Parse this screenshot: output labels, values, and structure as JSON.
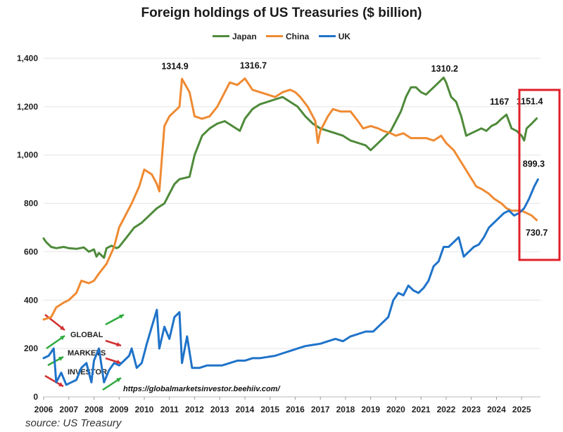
{
  "header": {
    "title": "Foreign holdings of US Treasuries ($ billion)"
  },
  "footer": {
    "source": "source: US Treasury",
    "url": "https://globalmarketsinvestor.beehiiv.com/",
    "watermark_words": [
      "GLOBAL",
      "MARKETS",
      "INVESTOR"
    ]
  },
  "colors": {
    "Japan": "#4e8a3a",
    "China": "#ef8a32",
    "UK": "#1f73c9",
    "highlight": "#e0202a"
  },
  "chart_data": {
    "type": "line",
    "title": "Foreign holdings of US Treasuries ($ billion)",
    "xlabel": "",
    "ylabel": "",
    "xlim": [
      2006,
      2025.75
    ],
    "ylim": [
      0,
      1400
    ],
    "yticks": [
      0,
      200,
      400,
      600,
      800,
      1000,
      1200,
      1400
    ],
    "ytick_labels": [
      "0",
      "200",
      "400",
      "600",
      "800",
      "1,000",
      "1,200",
      "1,400"
    ],
    "xticks": [
      2006,
      2007,
      2008,
      2009,
      2010,
      2011,
      2012,
      2013,
      2014,
      2015,
      2016,
      2017,
      2018,
      2019,
      2020,
      2021,
      2022,
      2023,
      2024,
      2025
    ],
    "xtick_labels": [
      "2006",
      "2007",
      "2008",
      "2009",
      "2010",
      "2011",
      "2012",
      "2013",
      "2014",
      "2015",
      "2016",
      "2017",
      "2018",
      "2019",
      "2020",
      "2021",
      "2022",
      "2023",
      "2024",
      "2025"
    ],
    "grid": "horizontal",
    "legend": "top",
    "series": [
      {
        "name": "Japan",
        "x": [
          2006,
          2006.1,
          2006.3,
          2006.5,
          2006.8,
          2007,
          2007.3,
          2007.6,
          2007.8,
          2008,
          2008.1,
          2008.2,
          2008.4,
          2008.5,
          2008.7,
          2008.9,
          2009,
          2009.3,
          2009.6,
          2009.9,
          2010.2,
          2010.5,
          2010.8,
          2011,
          2011.2,
          2011.4,
          2011.6,
          2011.8,
          2012,
          2012.3,
          2012.6,
          2012.9,
          2013.2,
          2013.5,
          2013.8,
          2014,
          2014.3,
          2014.6,
          2014.9,
          2015.2,
          2015.5,
          2015.8,
          2016.1,
          2016.4,
          2016.7,
          2017,
          2017.3,
          2017.6,
          2017.9,
          2018.2,
          2018.5,
          2018.8,
          2019,
          2019.2,
          2019.5,
          2019.8,
          2020,
          2020.2,
          2020.4,
          2020.6,
          2020.8,
          2021,
          2021.2,
          2021.4,
          2021.6,
          2021.8,
          2021.9,
          2022,
          2022.2,
          2022.4,
          2022.6,
          2022.8,
          2023,
          2023.2,
          2023.4,
          2023.6,
          2023.8,
          2024,
          2024.2,
          2024.4,
          2024.6,
          2024.8,
          2025,
          2025.1,
          2025.2,
          2025.4,
          2025.6
        ],
        "values": [
          655,
          640,
          620,
          615,
          620,
          615,
          612,
          618,
          600,
          610,
          580,
          595,
          575,
          615,
          625,
          615,
          620,
          660,
          700,
          720,
          750,
          780,
          800,
          840,
          880,
          900,
          905,
          910,
          1000,
          1080,
          1110,
          1130,
          1140,
          1120,
          1100,
          1150,
          1190,
          1210,
          1220,
          1230,
          1240,
          1220,
          1200,
          1160,
          1130,
          1110,
          1100,
          1090,
          1080,
          1060,
          1050,
          1040,
          1020,
          1040,
          1070,
          1100,
          1140,
          1180,
          1240,
          1280,
          1280,
          1260,
          1250,
          1270,
          1290,
          1310.2,
          1320,
          1300,
          1240,
          1220,
          1160,
          1080,
          1090,
          1100,
          1110,
          1100,
          1120,
          1130,
          1150,
          1167,
          1110,
          1100,
          1080,
          1060,
          1110,
          1130,
          1151.4
        ]
      },
      {
        "name": "China",
        "x": [
          2006,
          2006.3,
          2006.5,
          2006.8,
          2007,
          2007.3,
          2007.5,
          2007.8,
          2008,
          2008.2,
          2008.5,
          2008.8,
          2009,
          2009.3,
          2009.5,
          2009.8,
          2010,
          2010.3,
          2010.5,
          2010.6,
          2010.8,
          2011,
          2011.2,
          2011.4,
          2011.5,
          2011.8,
          2012,
          2012.3,
          2012.6,
          2012.9,
          2013.2,
          2013.4,
          2013.7,
          2014,
          2014.3,
          2014.6,
          2014.9,
          2015.2,
          2015.5,
          2015.8,
          2016,
          2016.2,
          2016.5,
          2016.8,
          2016.9,
          2017,
          2017.3,
          2017.5,
          2017.8,
          2018,
          2018.2,
          2018.5,
          2018.7,
          2019,
          2019.3,
          2019.5,
          2019.8,
          2020,
          2020.3,
          2020.6,
          2020.9,
          2021.2,
          2021.5,
          2021.8,
          2022,
          2022.3,
          2022.6,
          2022.9,
          2023.2,
          2023.4,
          2023.7,
          2023.9,
          2024.2,
          2024.4,
          2024.6,
          2024.8,
          2025,
          2025.2,
          2025.4,
          2025.6
        ],
        "values": [
          320,
          330,
          370,
          390,
          400,
          430,
          480,
          470,
          480,
          510,
          550,
          620,
          700,
          760,
          800,
          870,
          940,
          920,
          880,
          850,
          1120,
          1160,
          1180,
          1200,
          1314.9,
          1260,
          1160,
          1150,
          1160,
          1200,
          1260,
          1300,
          1290,
          1316.7,
          1270,
          1260,
          1250,
          1240,
          1260,
          1270,
          1260,
          1240,
          1200,
          1140,
          1050,
          1100,
          1160,
          1190,
          1180,
          1180,
          1180,
          1140,
          1110,
          1120,
          1110,
          1100,
          1090,
          1080,
          1090,
          1070,
          1070,
          1070,
          1060,
          1080,
          1050,
          1020,
          970,
          920,
          870,
          860,
          840,
          820,
          800,
          780,
          770,
          770,
          770,
          760,
          750,
          730.7
        ]
      },
      {
        "name": "UK",
        "x": [
          2006,
          2006.2,
          2006.4,
          2006.5,
          2006.7,
          2006.9,
          2007.1,
          2007.3,
          2007.5,
          2007.7,
          2007.9,
          2008,
          2008.2,
          2008.4,
          2008.6,
          2008.8,
          2009,
          2009.2,
          2009.4,
          2009.5,
          2009.7,
          2009.9,
          2010.1,
          2010.3,
          2010.5,
          2010.6,
          2010.8,
          2011,
          2011.2,
          2011.4,
          2011.5,
          2011.7,
          2011.9,
          2012.2,
          2012.5,
          2012.8,
          2013.1,
          2013.4,
          2013.7,
          2014,
          2014.3,
          2014.6,
          2014.9,
          2015.2,
          2015.5,
          2015.8,
          2016.1,
          2016.4,
          2016.7,
          2017,
          2017.3,
          2017.6,
          2017.9,
          2018.2,
          2018.5,
          2018.8,
          2019.1,
          2019.3,
          2019.5,
          2019.7,
          2019.9,
          2020.1,
          2020.3,
          2020.5,
          2020.7,
          2020.9,
          2021.1,
          2021.3,
          2021.5,
          2021.7,
          2021.9,
          2022.1,
          2022.3,
          2022.5,
          2022.7,
          2022.9,
          2023.1,
          2023.3,
          2023.5,
          2023.7,
          2023.9,
          2024.1,
          2024.3,
          2024.5,
          2024.7,
          2024.9,
          2025.1,
          2025.3,
          2025.5,
          2025.65
        ],
        "values": [
          160,
          170,
          200,
          60,
          100,
          50,
          60,
          70,
          120,
          140,
          60,
          150,
          200,
          60,
          110,
          140,
          130,
          150,
          170,
          200,
          120,
          140,
          220,
          290,
          360,
          200,
          290,
          240,
          330,
          350,
          140,
          250,
          120,
          120,
          130,
          130,
          130,
          140,
          150,
          150,
          160,
          160,
          165,
          170,
          180,
          190,
          200,
          210,
          215,
          220,
          230,
          240,
          230,
          250,
          260,
          270,
          270,
          290,
          310,
          330,
          400,
          430,
          420,
          460,
          440,
          430,
          450,
          480,
          540,
          560,
          620,
          620,
          640,
          660,
          580,
          600,
          620,
          630,
          660,
          700,
          720,
          740,
          760,
          770,
          750,
          760,
          780,
          820,
          870,
          899.3
        ]
      }
    ],
    "annotations": [
      {
        "text": "1314.9",
        "x": 2011.5,
        "y": 1314.9
      },
      {
        "text": "1316.7",
        "x": 2014.0,
        "y": 1316.7
      },
      {
        "text": "1310.2",
        "x": 2021.8,
        "y": 1310.2
      },
      {
        "text": "1167",
        "x": 2024.4,
        "y": 1167
      },
      {
        "text": "1151.4",
        "x": 2025.6,
        "y": 1151.4
      },
      {
        "text": "899.3",
        "x": 2025.65,
        "y": 899.3
      },
      {
        "text": "730.7",
        "x": 2025.6,
        "y": 730.7
      }
    ]
  }
}
